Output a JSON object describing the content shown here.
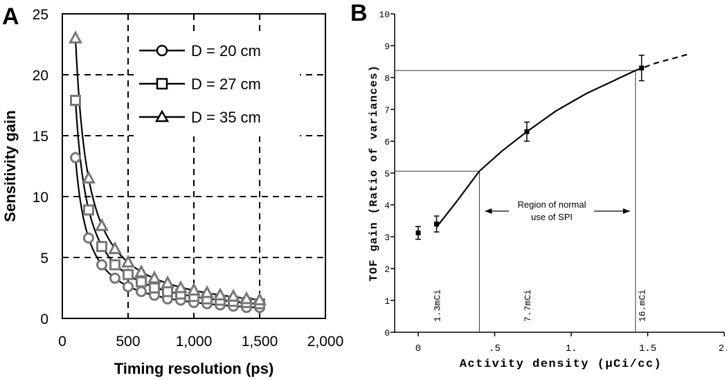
{
  "chart_data": [
    {
      "panel_label": "A",
      "type": "scatter",
      "xlabel": "Timing resolution (ps)",
      "ylabel": "Sensitivity gain",
      "xlim": [
        0,
        2000
      ],
      "ylim": [
        0,
        25
      ],
      "xticks": [
        0,
        500,
        1000,
        1500,
        2000
      ],
      "xtick_labels": [
        "0",
        "500",
        "1,000",
        "1,500",
        "2,000"
      ],
      "yticks": [
        0,
        5,
        10,
        15,
        20,
        25
      ],
      "ytick_labels": [
        "0",
        "5",
        "10",
        "15",
        "20",
        "25"
      ],
      "grid": "dashed",
      "legend_position": "top-right",
      "series": [
        {
          "name": "D = 20 cm",
          "marker": "circle",
          "x": [
            100,
            200,
            300,
            400,
            500,
            600,
            700,
            800,
            900,
            1000,
            1100,
            1200,
            1300,
            1400,
            1500
          ],
          "y": [
            13.2,
            6.6,
            4.4,
            3.3,
            2.6,
            2.2,
            1.9,
            1.6,
            1.5,
            1.3,
            1.2,
            1.1,
            1.0,
            0.9,
            0.9
          ]
        },
        {
          "name": "D = 27 cm",
          "marker": "square",
          "x": [
            100,
            200,
            300,
            400,
            500,
            600,
            700,
            800,
            900,
            1000,
            1100,
            1200,
            1300,
            1400,
            1500
          ],
          "y": [
            17.9,
            8.9,
            5.9,
            4.4,
            3.6,
            3.0,
            2.5,
            2.2,
            2.0,
            1.8,
            1.6,
            1.5,
            1.4,
            1.3,
            1.2
          ]
        },
        {
          "name": "D = 35 cm",
          "marker": "triangle",
          "x": [
            100,
            200,
            300,
            400,
            500,
            600,
            700,
            800,
            900,
            1000,
            1100,
            1200,
            1300,
            1400,
            1500
          ],
          "y": [
            23.0,
            11.5,
            7.6,
            5.7,
            4.6,
            3.8,
            3.3,
            2.9,
            2.5,
            2.3,
            2.1,
            1.9,
            1.8,
            1.6,
            1.5
          ]
        }
      ]
    },
    {
      "panel_label": "B",
      "type": "line",
      "xlabel": "Activity density (μCi/cc)",
      "ylabel": "TOF gain (Ratio of variances)",
      "xlim": [
        0,
        2
      ],
      "ylim": [
        0,
        10
      ],
      "xticks": [
        0,
        0.5,
        1,
        1.5,
        2
      ],
      "xtick_labels": [
        "0",
        ".5",
        "1.",
        "1.5",
        "2."
      ],
      "yticks": [
        0,
        1,
        2,
        3,
        4,
        5,
        6,
        7,
        8,
        9,
        10
      ],
      "ytick_labels": [
        "0",
        "1",
        "2",
        "3",
        "4",
        "5",
        "6",
        "7",
        "8",
        "9",
        "10"
      ],
      "points": [
        {
          "x": 0,
          "y": 3.12,
          "err": 0.2
        },
        {
          "x": 0.12,
          "y": 3.4,
          "err": 0.25
        },
        {
          "x": 0.71,
          "y": 6.3,
          "err": 0.3
        },
        {
          "x": 1.46,
          "y": 8.3,
          "err": 0.4
        }
      ],
      "curve_solid": [
        [
          0.12,
          3.3
        ],
        [
          0.25,
          4.1
        ],
        [
          0.4,
          5.06
        ],
        [
          0.55,
          5.7
        ],
        [
          0.71,
          6.3
        ],
        [
          0.9,
          6.95
        ],
        [
          1.1,
          7.5
        ],
        [
          1.3,
          7.95
        ],
        [
          1.42,
          8.22
        ]
      ],
      "curve_dashed": [
        [
          1.42,
          8.22
        ],
        [
          1.55,
          8.45
        ],
        [
          1.78,
          8.75
        ]
      ],
      "reference_lines": [
        {
          "x": 0.4,
          "y": 5.06
        },
        {
          "x": 1.42,
          "y": 8.22
        }
      ],
      "annotation": "Region of normal use of SPI",
      "annotation_lines": [
        "Region of normal",
        "use of SPI"
      ],
      "annotation_range": [
        0.4,
        1.42
      ],
      "labels": [
        {
          "text": "1.3mCi",
          "x": 0.12
        },
        {
          "text": "7.7mCi",
          "x": 0.71
        },
        {
          "text": "16.mCi",
          "x": 1.46
        }
      ]
    }
  ]
}
